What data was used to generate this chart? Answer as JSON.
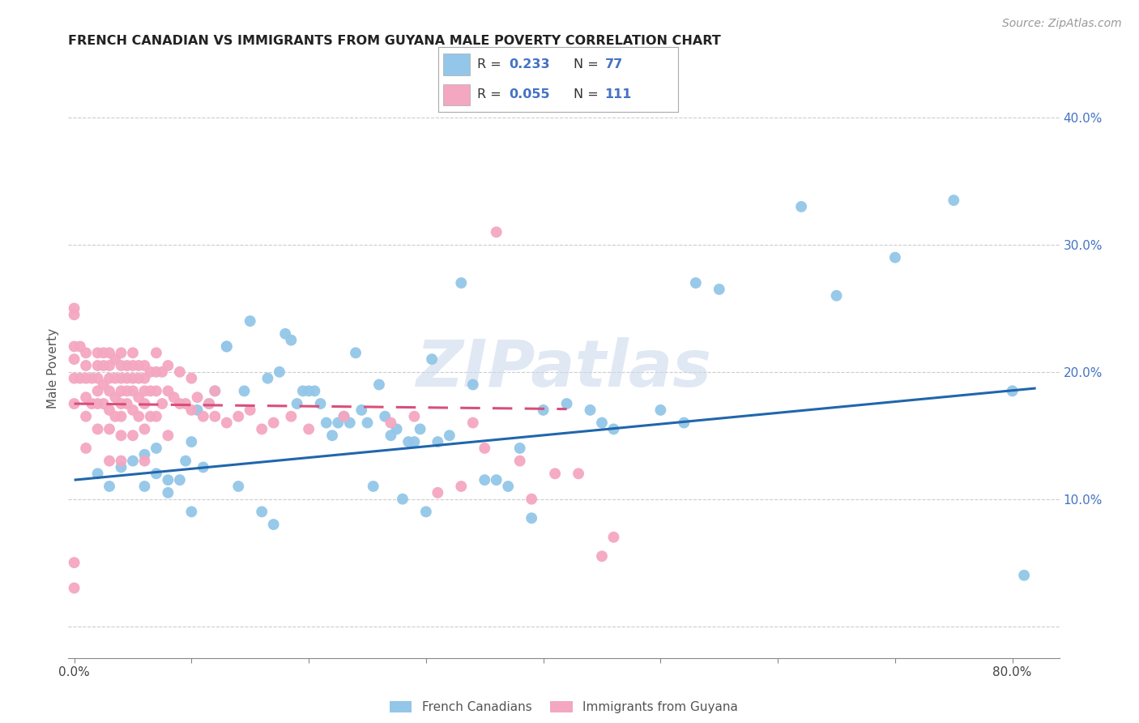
{
  "title": "FRENCH CANADIAN VS IMMIGRANTS FROM GUYANA MALE POVERTY CORRELATION CHART",
  "source": "Source: ZipAtlas.com",
  "ylabel": "Male Poverty",
  "r_blue": "0.233",
  "n_blue": "77",
  "r_pink": "0.055",
  "n_pink": "111",
  "blue_color": "#93c6e8",
  "pink_color": "#f4a7c0",
  "blue_line_color": "#2166ac",
  "pink_line_color": "#d94f7a",
  "watermark": "ZIPatlas",
  "legend_label_blue": "French Canadians",
  "legend_label_pink": "Immigrants from Guyana",
  "xlim": [
    -0.005,
    0.84
  ],
  "ylim": [
    -0.025,
    0.43
  ],
  "blue_scatter_x": [
    0.02,
    0.03,
    0.04,
    0.05,
    0.06,
    0.06,
    0.07,
    0.07,
    0.08,
    0.08,
    0.09,
    0.095,
    0.1,
    0.1,
    0.105,
    0.11,
    0.115,
    0.12,
    0.13,
    0.13,
    0.14,
    0.145,
    0.15,
    0.16,
    0.165,
    0.17,
    0.175,
    0.18,
    0.185,
    0.19,
    0.195,
    0.2,
    0.205,
    0.21,
    0.215,
    0.22,
    0.225,
    0.23,
    0.235,
    0.24,
    0.245,
    0.25,
    0.255,
    0.26,
    0.265,
    0.27,
    0.275,
    0.28,
    0.285,
    0.29,
    0.295,
    0.3,
    0.305,
    0.31,
    0.32,
    0.33,
    0.34,
    0.35,
    0.36,
    0.37,
    0.38,
    0.39,
    0.4,
    0.42,
    0.44,
    0.45,
    0.46,
    0.5,
    0.52,
    0.53,
    0.55,
    0.62,
    0.65,
    0.7,
    0.75,
    0.8,
    0.81
  ],
  "blue_scatter_y": [
    0.12,
    0.11,
    0.125,
    0.13,
    0.11,
    0.135,
    0.12,
    0.14,
    0.105,
    0.115,
    0.115,
    0.13,
    0.145,
    0.09,
    0.17,
    0.125,
    0.175,
    0.185,
    0.22,
    0.22,
    0.11,
    0.185,
    0.24,
    0.09,
    0.195,
    0.08,
    0.2,
    0.23,
    0.225,
    0.175,
    0.185,
    0.185,
    0.185,
    0.175,
    0.16,
    0.15,
    0.16,
    0.165,
    0.16,
    0.215,
    0.17,
    0.16,
    0.11,
    0.19,
    0.165,
    0.15,
    0.155,
    0.1,
    0.145,
    0.145,
    0.155,
    0.09,
    0.21,
    0.145,
    0.15,
    0.27,
    0.19,
    0.115,
    0.115,
    0.11,
    0.14,
    0.085,
    0.17,
    0.175,
    0.17,
    0.16,
    0.155,
    0.17,
    0.16,
    0.27,
    0.265,
    0.33,
    0.26,
    0.29,
    0.335,
    0.185,
    0.04
  ],
  "pink_scatter_x": [
    0.0,
    0.0,
    0.0,
    0.0,
    0.0,
    0.0,
    0.0,
    0.0,
    0.005,
    0.005,
    0.01,
    0.01,
    0.01,
    0.01,
    0.01,
    0.01,
    0.015,
    0.015,
    0.02,
    0.02,
    0.02,
    0.02,
    0.02,
    0.02,
    0.025,
    0.025,
    0.025,
    0.025,
    0.03,
    0.03,
    0.03,
    0.03,
    0.03,
    0.03,
    0.03,
    0.035,
    0.035,
    0.035,
    0.035,
    0.04,
    0.04,
    0.04,
    0.04,
    0.04,
    0.04,
    0.04,
    0.04,
    0.045,
    0.045,
    0.045,
    0.045,
    0.05,
    0.05,
    0.05,
    0.05,
    0.05,
    0.05,
    0.055,
    0.055,
    0.055,
    0.055,
    0.06,
    0.06,
    0.06,
    0.06,
    0.06,
    0.06,
    0.065,
    0.065,
    0.065,
    0.07,
    0.07,
    0.07,
    0.07,
    0.075,
    0.075,
    0.08,
    0.08,
    0.08,
    0.085,
    0.09,
    0.09,
    0.095,
    0.1,
    0.1,
    0.105,
    0.11,
    0.115,
    0.12,
    0.12,
    0.13,
    0.14,
    0.15,
    0.16,
    0.17,
    0.185,
    0.2,
    0.23,
    0.27,
    0.29,
    0.31,
    0.33,
    0.34,
    0.35,
    0.36,
    0.38,
    0.39,
    0.41,
    0.43,
    0.45,
    0.46
  ],
  "pink_scatter_y": [
    0.25,
    0.245,
    0.22,
    0.21,
    0.195,
    0.175,
    0.05,
    0.03,
    0.22,
    0.195,
    0.215,
    0.205,
    0.195,
    0.18,
    0.165,
    0.14,
    0.195,
    0.175,
    0.215,
    0.205,
    0.195,
    0.185,
    0.175,
    0.155,
    0.215,
    0.205,
    0.19,
    0.175,
    0.215,
    0.205,
    0.195,
    0.185,
    0.17,
    0.155,
    0.13,
    0.21,
    0.195,
    0.18,
    0.165,
    0.215,
    0.205,
    0.195,
    0.185,
    0.175,
    0.165,
    0.15,
    0.13,
    0.205,
    0.195,
    0.185,
    0.175,
    0.215,
    0.205,
    0.195,
    0.185,
    0.17,
    0.15,
    0.205,
    0.195,
    0.18,
    0.165,
    0.205,
    0.195,
    0.185,
    0.175,
    0.155,
    0.13,
    0.2,
    0.185,
    0.165,
    0.215,
    0.2,
    0.185,
    0.165,
    0.2,
    0.175,
    0.205,
    0.185,
    0.15,
    0.18,
    0.2,
    0.175,
    0.175,
    0.195,
    0.17,
    0.18,
    0.165,
    0.175,
    0.165,
    0.185,
    0.16,
    0.165,
    0.17,
    0.155,
    0.16,
    0.165,
    0.155,
    0.165,
    0.16,
    0.165,
    0.105,
    0.11,
    0.16,
    0.14,
    0.31,
    0.13,
    0.1,
    0.12,
    0.12,
    0.055,
    0.07
  ]
}
